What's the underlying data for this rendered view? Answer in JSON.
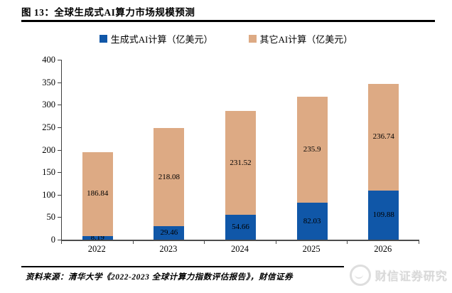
{
  "figure": {
    "title": "图 13：全球生成式AI算力市场规模预测",
    "source": "资料来源：清华大学《2022-2023 全球计算力指数评估报告》，财信证券",
    "watermark": "财信证券研究"
  },
  "chart_data": {
    "type": "bar",
    "stacked": true,
    "title": "全球生成式AI算力市场规模预测",
    "categories": [
      "2022",
      "2023",
      "2024",
      "2025",
      "2026"
    ],
    "series": [
      {
        "name": "生成式AI计算（亿美元）",
        "color": "#1057A8",
        "values": [
          8.19,
          29.46,
          54.66,
          82.03,
          109.88
        ]
      },
      {
        "name": "其它AI计算（亿美元）",
        "color": "#DDAA84",
        "values": [
          186.84,
          218.08,
          231.52,
          235.9,
          236.74
        ]
      }
    ],
    "xlabel": "",
    "ylabel": "",
    "ylim": [
      0,
      400
    ],
    "yticks": [
      0,
      50,
      100,
      150,
      200,
      250,
      300,
      350,
      400
    ],
    "legend_position": "top",
    "grid": false,
    "bar_value_labels": true
  }
}
